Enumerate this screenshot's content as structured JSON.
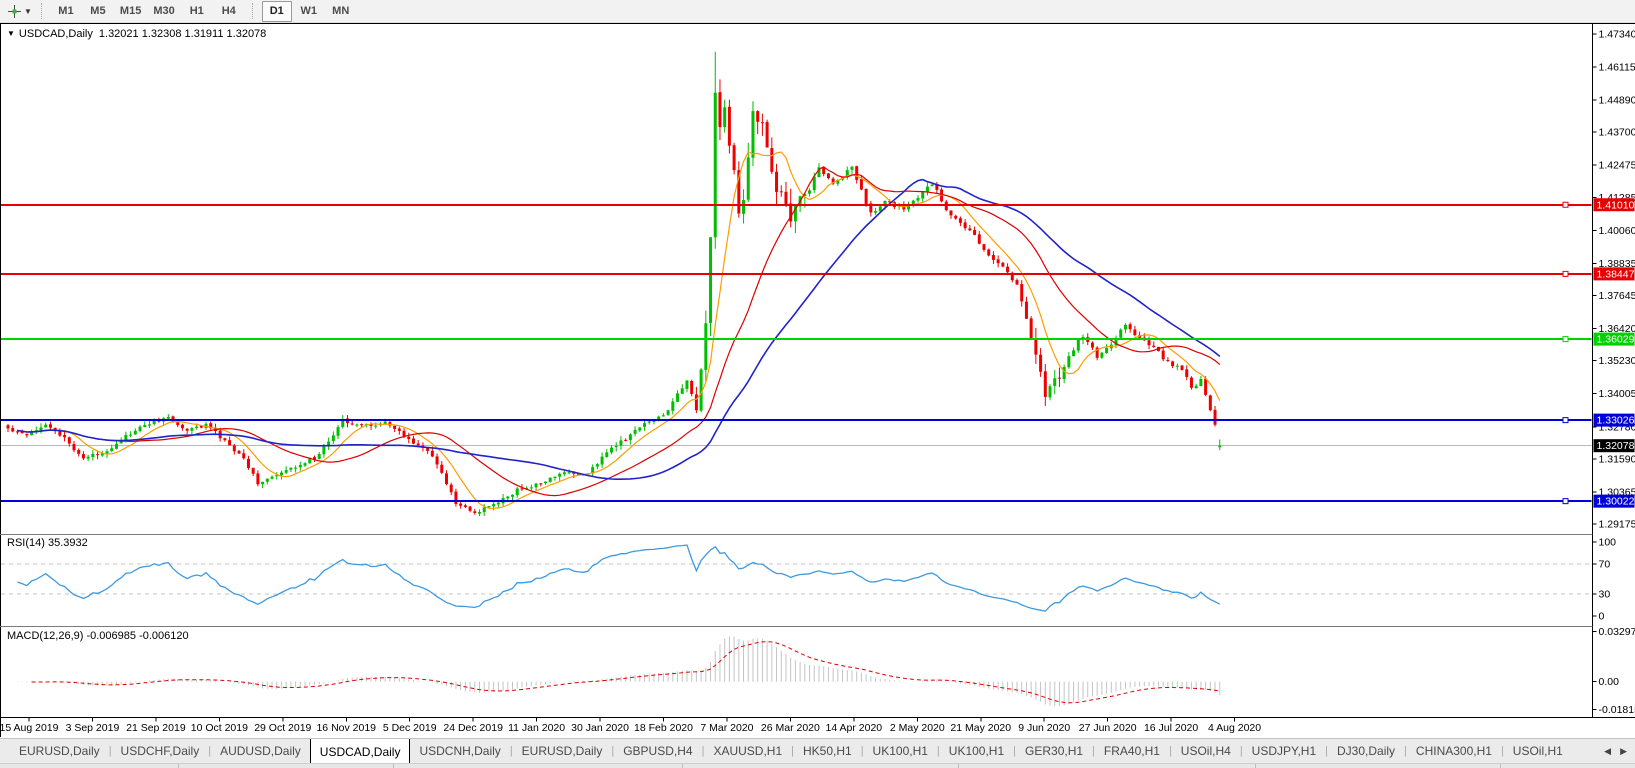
{
  "toolbar": {
    "timeframes": [
      "M1",
      "M5",
      "M15",
      "M30",
      "H1",
      "H4",
      "D1",
      "W1",
      "MN"
    ],
    "active": "D1",
    "group_split_after": "H4"
  },
  "chart": {
    "title": "USDCAD,Daily",
    "quote": "1.32021 1.32308 1.31911 1.32078",
    "ohlc": {
      "open": "1.32021",
      "high": "1.32308",
      "low": "1.31911",
      "close": "1.32078"
    },
    "price_ticks": [
      {
        "label": "1.47340",
        "value": 1.4734
      },
      {
        "label": "1.46115",
        "value": 1.46115
      },
      {
        "label": "1.44890",
        "value": 1.4489
      },
      {
        "label": "1.43700",
        "value": 1.437
      },
      {
        "label": "1.42475",
        "value": 1.42475
      },
      {
        "label": "1.41285",
        "value": 1.41285
      },
      {
        "label": "1.40060",
        "value": 1.4006
      },
      {
        "label": "1.38835",
        "value": 1.38835
      },
      {
        "label": "1.37645",
        "value": 1.37645
      },
      {
        "label": "1.36420",
        "value": 1.3642
      },
      {
        "label": "1.35230",
        "value": 1.3523
      },
      {
        "label": "1.34005",
        "value": 1.34005
      },
      {
        "label": "1.32780",
        "value": 1.3278
      },
      {
        "label": "1.31590",
        "value": 1.3159
      },
      {
        "label": "1.30365",
        "value": 1.30365
      },
      {
        "label": "1.29175",
        "value": 1.29175
      }
    ],
    "hlines": [
      {
        "label": "1.41010",
        "value": 1.4101,
        "color": "#e60000"
      },
      {
        "label": "1.38447",
        "value": 1.38447,
        "color": "#e60000"
      },
      {
        "label": "1.36029",
        "value": 1.36029,
        "color": "#00d200"
      },
      {
        "label": "1.33026",
        "value": 1.33026,
        "color": "#0000d8"
      },
      {
        "label": "1.30022",
        "value": 1.30022,
        "color": "#0000d8"
      }
    ],
    "current": {
      "label": "1.32078",
      "value": 1.32078,
      "bg": "#000000"
    }
  },
  "rsi": {
    "title": "RSI(14) 35.3932",
    "value": 35.3932,
    "ticks": [
      {
        "label": "100",
        "value": 100
      },
      {
        "label": "70",
        "value": 70
      },
      {
        "label": "30",
        "value": 30
      },
      {
        "label": "0",
        "value": 0
      }
    ],
    "dashed_levels": [
      70,
      30
    ]
  },
  "macd": {
    "title": "MACD(12,26,9) -0.006985 -0.006120",
    "macd_value": -0.006985,
    "signal_value": -0.00612,
    "ticks": [
      {
        "label": "0.032972",
        "value": 0.032972
      },
      {
        "label": "0.00",
        "value": 0
      },
      {
        "label": "-0.01815",
        "value": -0.01815
      }
    ]
  },
  "date_axis": [
    "15 Aug 2019",
    "3 Sep 2019",
    "21 Sep 2019",
    "10 Oct 2019",
    "29 Oct 2019",
    "16 Nov 2019",
    "5 Dec 2019",
    "24 Dec 2019",
    "11 Jan 2020",
    "30 Jan 2020",
    "18 Feb 2020",
    "7 Mar 2020",
    "26 Mar 2020",
    "14 Apr 2020",
    "2 May 2020",
    "21 May 2020",
    "9 Jun 2020",
    "27 Jun 2020",
    "16 Jul 2020",
    "4 Aug 2020"
  ],
  "tabs": {
    "items": [
      "EURUSD,Daily",
      "USDCHF,Daily",
      "AUDUSD,Daily",
      "USDCAD,Daily",
      "USDCNH,Daily",
      "EURUSD,Daily",
      "GBPUSD,H4",
      "XAUUSD,H1",
      "HK50,H1",
      "UK100,H1",
      "UK100,H1",
      "GER30,H1",
      "FRA40,H1",
      "USOil,H4",
      "USDJPY,H1",
      "DJ30,Daily",
      "CHINA300,H1",
      "USOil,H1"
    ],
    "active_index": 3,
    "scroll_left": "◀",
    "scroll_right": "▶"
  },
  "chart_data": {
    "type": "candlestick",
    "symbol": "USDCAD",
    "timeframe": "Daily",
    "bars": 258,
    "y_axis": {
      "min": 1.29175,
      "max": 1.4734
    },
    "spike_high": 1.4668,
    "dec_low": 1.2952,
    "last_bar": {
      "open": 1.32021,
      "high": 1.32308,
      "low": 1.31911,
      "close": 1.32078
    },
    "price_waypoints": [
      [
        0,
        1.327
      ],
      [
        4,
        1.3252
      ],
      [
        8,
        1.329
      ],
      [
        12,
        1.3232
      ],
      [
        16,
        1.3162
      ],
      [
        20,
        1.318
      ],
      [
        25,
        1.3242
      ],
      [
        30,
        1.3292
      ],
      [
        34,
        1.3312
      ],
      [
        38,
        1.3262
      ],
      [
        42,
        1.3288
      ],
      [
        46,
        1.3222
      ],
      [
        50,
        1.316
      ],
      [
        53,
        1.3072
      ],
      [
        57,
        1.3095
      ],
      [
        62,
        1.314
      ],
      [
        66,
        1.3172
      ],
      [
        71,
        1.3305
      ],
      [
        75,
        1.3282
      ],
      [
        80,
        1.3292
      ],
      [
        85,
        1.3232
      ],
      [
        90,
        1.3172
      ],
      [
        95,
        1.2995
      ],
      [
        99,
        1.2958
      ],
      [
        103,
        1.2988
      ],
      [
        108,
        1.3042
      ],
      [
        113,
        1.3068
      ],
      [
        118,
        1.3108
      ],
      [
        123,
        1.31
      ],
      [
        127,
        1.3188
      ],
      [
        131,
        1.3232
      ],
      [
        135,
        1.3292
      ],
      [
        139,
        1.3318
      ],
      [
        142,
        1.3398
      ],
      [
        144,
        1.3448
      ],
      [
        146,
        1.3365
      ],
      [
        147,
        1.348
      ],
      [
        148,
        1.365
      ],
      [
        149,
        1.4
      ],
      [
        150,
        1.451
      ],
      [
        151,
        1.44
      ],
      [
        152,
        1.4475
      ],
      [
        153,
        1.433
      ],
      [
        154,
        1.421
      ],
      [
        155,
        1.406
      ],
      [
        156,
        1.41
      ],
      [
        157,
        1.43
      ],
      [
        158,
        1.443
      ],
      [
        160,
        1.438
      ],
      [
        163,
        1.416
      ],
      [
        166,
        1.406
      ],
      [
        169,
        1.4135
      ],
      [
        172,
        1.4238
      ],
      [
        175,
        1.418
      ],
      [
        179,
        1.4238
      ],
      [
        183,
        1.4068
      ],
      [
        186,
        1.4108
      ],
      [
        190,
        1.4088
      ],
      [
        193,
        1.4128
      ],
      [
        196,
        1.418
      ],
      [
        199,
        1.4088
      ],
      [
        202,
        1.4028
      ],
      [
        205,
        1.3988
      ],
      [
        208,
        1.3908
      ],
      [
        211,
        1.3878
      ],
      [
        214,
        1.3798
      ],
      [
        217,
        1.3622
      ],
      [
        220,
        1.3402
      ],
      [
        222,
        1.3448
      ],
      [
        224,
        1.3498
      ],
      [
        226,
        1.3568
      ],
      [
        228,
        1.3618
      ],
      [
        231,
        1.3538
      ],
      [
        234,
        1.3588
      ],
      [
        237,
        1.3658
      ],
      [
        240,
        1.3608
      ],
      [
        243,
        1.3568
      ],
      [
        246,
        1.3518
      ],
      [
        249,
        1.3488
      ],
      [
        251,
        1.3422
      ],
      [
        253,
        1.3448
      ],
      [
        255,
        1.3338
      ],
      [
        256,
        1.3288
      ],
      [
        257,
        1.32078
      ]
    ],
    "indicators": {
      "rsi": {
        "period": 14
      },
      "macd": {
        "fast": 12,
        "slow": 26,
        "signal": 9
      },
      "moving_averages": [
        {
          "period": 8,
          "color": "#ff9c00"
        },
        {
          "period": 24,
          "color": "#dd0000"
        },
        {
          "period": 45,
          "color": "#2222cc"
        }
      ]
    },
    "colors": {
      "up": "#00be00",
      "down": "#ee0000",
      "rsi_line": "#3d9ae0",
      "level_dash": "#c6c6c6",
      "macd_hist": "#c4c4c4",
      "macd_signal": "#e00000",
      "current_price_line": "#b8b8b8"
    }
  }
}
